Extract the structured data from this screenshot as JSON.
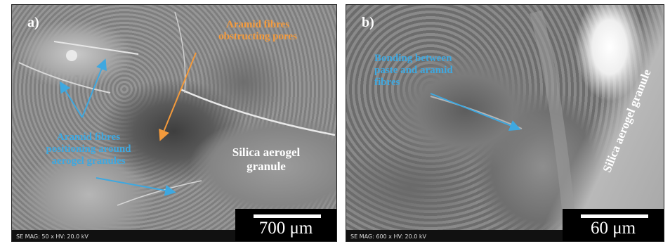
{
  "colors": {
    "annotation_orange": "#f39a3c",
    "annotation_blue": "#3ea8e0",
    "annotation_white": "#ffffff"
  },
  "panel_a": {
    "letter": "a)",
    "annotations": {
      "aramid_obstructing": [
        "Aramid fibres",
        "obstructing pores"
      ],
      "aramid_positioning": [
        "Aramid fibres",
        "positioning around",
        "aerogel granules"
      ],
      "silica_granule": [
        "Silica aerogel",
        "granule"
      ]
    },
    "microscope_info": "SE  MAG: 50 x  HV: 20.0 kV",
    "scale_label": "700 μm"
  },
  "panel_b": {
    "letter": "b)",
    "annotations": {
      "bonding": [
        "Bonding between",
        "paste and aramid",
        "fibres"
      ],
      "silica_granule_rotated": "Silica aerogel granule"
    },
    "microscope_info": "SE  MAG: 600 x  HV: 20.0 kV",
    "scale_label": "60 μm"
  }
}
